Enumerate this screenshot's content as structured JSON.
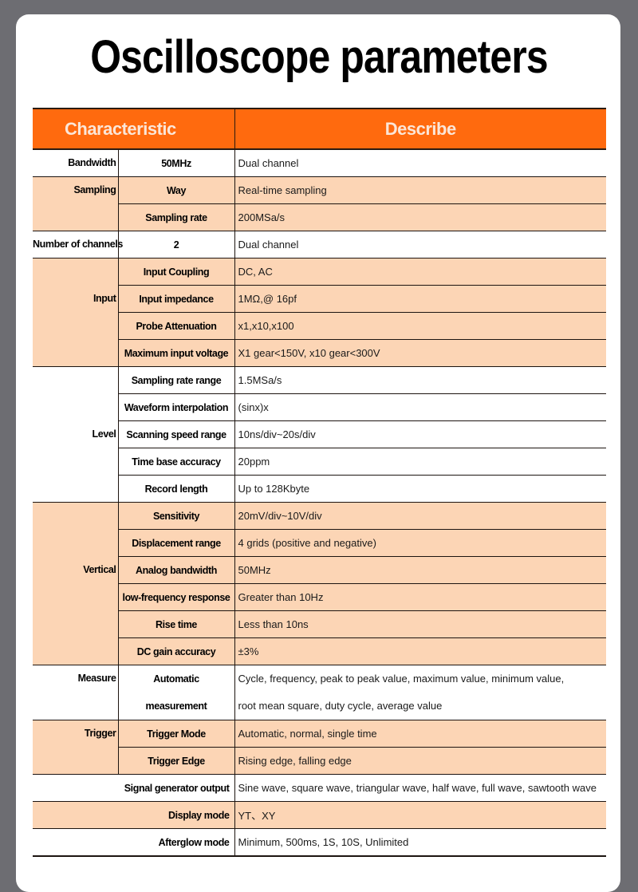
{
  "title": "Oscilloscope parameters",
  "header": {
    "characteristic": "Characteristic",
    "describe": "Describe"
  },
  "colors": {
    "header": "#ff6a0e",
    "band": "#fcd5b5"
  },
  "groups": [
    {
      "label": "Bandwidth",
      "rows": [
        {
          "sub": "50MHz",
          "desc": "Dual channel"
        }
      ]
    },
    {
      "label": "Sampling",
      "rows": [
        {
          "sub": "Way",
          "desc": "Real-time sampling"
        },
        {
          "sub": "Sampling rate",
          "desc": "200MSa/s"
        }
      ]
    },
    {
      "label": "Number of channels",
      "rows": [
        {
          "sub": "2",
          "desc": "Dual channel"
        }
      ]
    },
    {
      "label": "Input",
      "rows": [
        {
          "sub": "Input Coupling",
          "desc": "DC, AC"
        },
        {
          "sub": "Input impedance",
          "desc": "1MΩ,@ 16pf"
        },
        {
          "sub": "Probe Attenuation",
          "desc": "x1,x10,x100"
        },
        {
          "sub": "Maximum input voltage",
          "desc": "X1 gear<150V, x10 gear<300V"
        }
      ]
    },
    {
      "label": "Level",
      "rows": [
        {
          "sub": "Sampling rate range",
          "desc": "1.5MSa/s"
        },
        {
          "sub": "Waveform interpolation",
          "desc": "(sinx)x"
        },
        {
          "sub": "Scanning speed range",
          "desc": "10ns/div~20s/div"
        },
        {
          "sub": "Time base accuracy",
          "desc": "20ppm"
        },
        {
          "sub": "Record length",
          "desc": "Up to 128Kbyte"
        }
      ]
    },
    {
      "label": "Vertical",
      "rows": [
        {
          "sub": "Sensitivity",
          "desc": "20mV/div~10V/div"
        },
        {
          "sub": "Displacement range",
          "desc": "4 grids (positive and negative)"
        },
        {
          "sub": "Analog bandwidth",
          "desc": "50MHz"
        },
        {
          "sub": "low-frequency response",
          "desc": "Greater than 10Hz"
        },
        {
          "sub": "Rise time",
          "desc": "Less than 10ns"
        },
        {
          "sub": "DC gain accuracy",
          "desc": "±3%"
        }
      ]
    },
    {
      "label": "Measure",
      "rows": [
        {
          "sub": "Automatic",
          "sub2": "measurement",
          "desc": "Cycle, frequency, peak to peak value, maximum value, minimum value,",
          "desc2": "root mean square, duty cycle, average value"
        }
      ]
    },
    {
      "label": "Trigger",
      "rows": [
        {
          "sub": "Trigger Mode",
          "desc": "Automatic, normal, single time"
        },
        {
          "sub": "Trigger Edge",
          "desc": "Rising edge, falling edge"
        }
      ]
    },
    {
      "label": "Signal generator output",
      "span": true,
      "rows": [
        {
          "desc": "Sine wave, square wave, triangular wave, half wave, full wave, sawtooth wave"
        }
      ]
    },
    {
      "label": "Display mode",
      "span": true,
      "rows": [
        {
          "desc": "YT、XY"
        }
      ]
    },
    {
      "label": "Afterglow mode",
      "span": true,
      "rows": [
        {
          "desc": "Minimum, 500ms, 1S, 10S, Unlimited"
        }
      ]
    }
  ]
}
